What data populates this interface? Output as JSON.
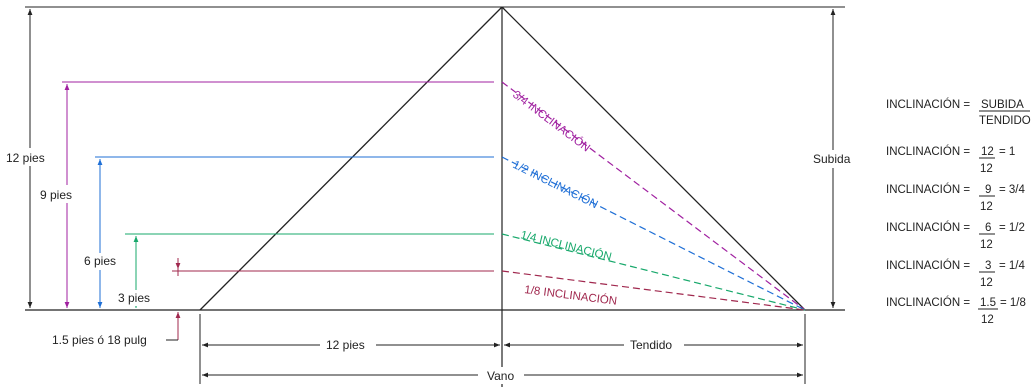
{
  "dimensions": {
    "height_12": "12 pies",
    "height_9": "9 pies",
    "height_6": "6 pies",
    "height_3": "3 pies",
    "height_1_5": "1.5 pies ó 18 pulg",
    "half_span": "12 pies",
    "run": "Tendido",
    "span": "Vano",
    "rise": "Subida"
  },
  "slopes": [
    {
      "label": "3/4 INCLINACIÓN",
      "color": "#a020a0"
    },
    {
      "label": "1/2 INCLINACIÓN",
      "color": "#1f6fd6"
    },
    {
      "label": "1/4 INCLINACIÓN",
      "color": "#17a86b"
    },
    {
      "label": "1/8 INCLINACIÓN",
      "color": "#a0284e"
    }
  ],
  "formulas": [
    {
      "lhs": "INCLINACIÓN =",
      "num": "SUBIDA",
      "den": "TENDIDO",
      "result": ""
    },
    {
      "lhs": "INCLINACIÓN =",
      "num": "12",
      "den": "12",
      "result": "= 1"
    },
    {
      "lhs": "INCLINACIÓN =",
      "num": "9",
      "den": "12",
      "result": "= 3/4"
    },
    {
      "lhs": "INCLINACIÓN =",
      "num": "6",
      "den": "12",
      "result": "= 1/2"
    },
    {
      "lhs": "INCLINACIÓN =",
      "num": "3",
      "den": "12",
      "result": "= 1/4"
    },
    {
      "lhs": "INCLINACIÓN =",
      "num": "1.5",
      "den": "12",
      "result": "= 1/8"
    }
  ]
}
